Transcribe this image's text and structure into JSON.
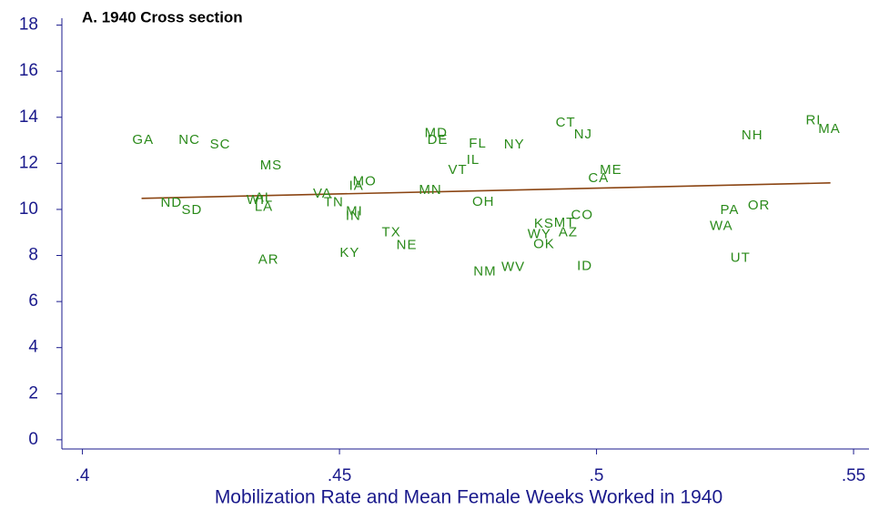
{
  "chart_data": {
    "type": "scatter",
    "title": "A. 1940 Cross section",
    "x_label": "Mobilization Rate and Mean Female Weeks Worked in 1940",
    "color": "#2a8a1a",
    "labels": [
      "GA",
      "NC",
      "SC",
      "MS",
      "ND",
      "SD",
      "WI",
      "AL",
      "LA",
      "AR",
      "VA",
      "IA",
      "MO",
      "TN",
      "MI",
      "IN",
      "KY",
      "TX",
      "NE",
      "MD",
      "DE",
      "MN",
      "VT",
      "IL",
      "FL",
      "NY",
      "OH",
      "NM",
      "WV",
      "CT",
      "NJ",
      "ME",
      "CA",
      "CO",
      "KS",
      "MT",
      "WY",
      "AZ",
      "OK",
      "ID",
      "NH",
      "RI",
      "MA",
      "PA",
      "OR",
      "WA",
      "UT"
    ],
    "x": [
      0.4118,
      0.4208,
      0.4268,
      0.4367,
      0.4173,
      0.4213,
      0.4337,
      0.4353,
      0.4353,
      0.4362,
      0.4467,
      0.4533,
      0.4549,
      0.4489,
      0.4529,
      0.4527,
      0.452,
      0.4601,
      0.4631,
      0.4688,
      0.4691,
      0.4677,
      0.473,
      0.476,
      0.4769,
      0.484,
      0.478,
      0.4783,
      0.4838,
      0.494,
      0.4974,
      0.5028,
      0.5004,
      0.4972,
      0.4898,
      0.4938,
      0.4889,
      0.4945,
      0.4898,
      0.4977,
      0.5303,
      0.5422,
      0.5453,
      0.5259,
      0.5316,
      0.5243,
      0.528
    ],
    "y": [
      13.0,
      13.0,
      12.8,
      11.9,
      10.28,
      9.96,
      10.4,
      10.5,
      10.1,
      7.8,
      10.67,
      11.0,
      11.2,
      10.3,
      9.9,
      9.7,
      8.1,
      8.98,
      8.43,
      13.3,
      13.0,
      10.83,
      11.7,
      12.13,
      12.84,
      12.8,
      10.32,
      7.29,
      7.48,
      13.75,
      13.23,
      11.7,
      11.34,
      9.73,
      9.37,
      9.41,
      8.9,
      8.98,
      8.47,
      7.52,
      13.19,
      13.86,
      13.47,
      9.96,
      10.16,
      9.26,
      7.88
    ],
    "fit": {
      "x": [
        0.4115,
        0.5455
      ],
      "y": [
        10.48,
        11.15
      ],
      "color": "#8b4513"
    },
    "xlim": [
      0.396,
      0.553
    ],
    "ylim": [
      -0.4,
      18.3
    ],
    "xticks": [
      {
        "value": 0.4,
        "label": ".4"
      },
      {
        "value": 0.45,
        "label": ".45"
      },
      {
        "value": 0.5,
        "label": ".5"
      },
      {
        "value": 0.55,
        "label": ".55"
      }
    ],
    "yticks": [
      0,
      2,
      4,
      6,
      8,
      10,
      12,
      14,
      16,
      18
    ]
  }
}
